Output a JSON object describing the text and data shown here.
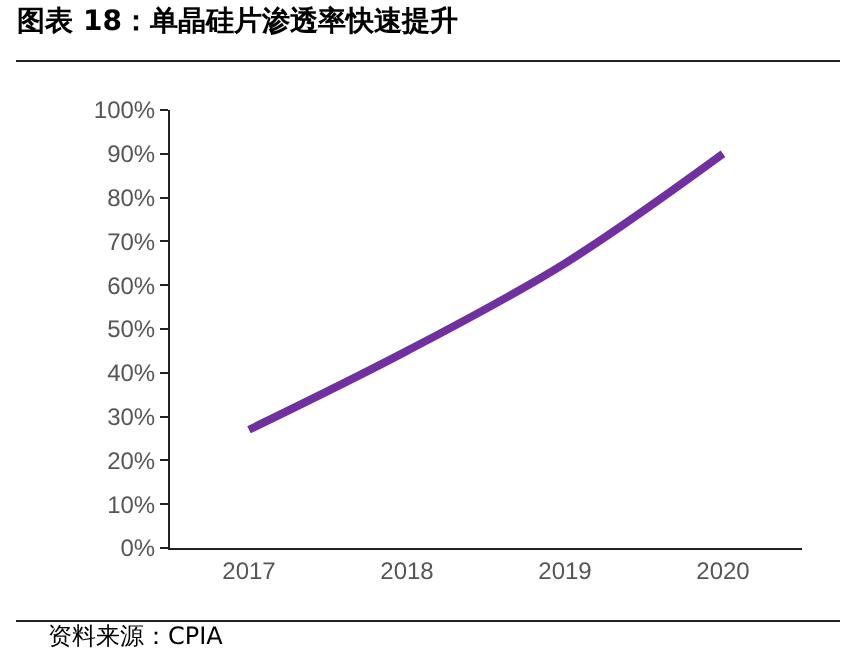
{
  "chart_data": {
    "type": "line",
    "title": "图表 18：单晶硅片渗透率快速提升",
    "categories": [
      "2017",
      "2018",
      "2019",
      "2020"
    ],
    "series": [
      {
        "color": "#7030a0",
        "values": [
          27,
          45,
          65,
          90
        ]
      }
    ],
    "ylim": [
      0,
      100
    ],
    "yticks": [
      {
        "value": 0,
        "label": "0%"
      },
      {
        "value": 10,
        "label": "10%"
      },
      {
        "value": 20,
        "label": "20%"
      },
      {
        "value": 30,
        "label": "30%"
      },
      {
        "value": 40,
        "label": "40%"
      },
      {
        "value": 50,
        "label": "50%"
      },
      {
        "value": 60,
        "label": "60%"
      },
      {
        "value": 70,
        "label": "70%"
      },
      {
        "value": 80,
        "label": "80%"
      },
      {
        "value": 90,
        "label": "90%"
      },
      {
        "value": 100,
        "label": "100%"
      }
    ],
    "line_style": "solid",
    "annotations": [
      "资料来源：CPIA"
    ]
  }
}
